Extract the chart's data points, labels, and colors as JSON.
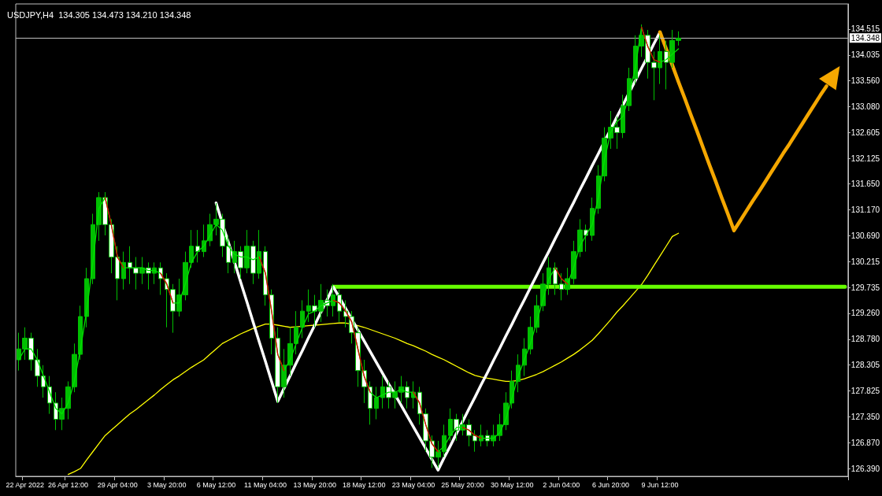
{
  "chart_data": {
    "type": "candlestick",
    "title": "USDJPY,H4  134.305 134.473 134.210 134.348",
    "categories": [
      null,
      "22 Apr 2022",
      null,
      null,
      null,
      null,
      null,
      null,
      "26 Apr 12:00",
      null,
      null,
      null,
      null,
      null,
      null,
      null,
      "29 Apr 04:00",
      null,
      null,
      null,
      null,
      null,
      null,
      null,
      "3 May 20:00",
      null,
      null,
      null,
      null,
      null,
      null,
      null,
      "6 May 12:00",
      null,
      null,
      null,
      null,
      null,
      null,
      null,
      "11 May 04:00",
      null,
      null,
      null,
      null,
      null,
      null,
      null,
      "13 May 20:00",
      null,
      null,
      null,
      null,
      null,
      null,
      null,
      "18 May 12:00",
      null,
      null,
      null,
      null,
      null,
      null,
      null,
      "23 May 04:00",
      null,
      null,
      null,
      null,
      null,
      null,
      null,
      "25 May 20:00",
      null,
      null,
      null,
      null,
      null,
      null,
      null,
      "30 May 12:00",
      null,
      null,
      null,
      null,
      null,
      null,
      null,
      "2 Jun 04:00",
      null,
      null,
      null,
      null,
      null,
      null,
      null,
      "6 Jun 20:00",
      null,
      null,
      null,
      null,
      null,
      null,
      null,
      "9 Jun 12:00",
      null,
      null,
      null,
      null,
      null,
      null,
      null,
      null,
      null,
      null,
      null,
      null,
      null,
      null,
      null,
      null,
      null,
      null,
      null,
      null,
      null,
      null,
      null,
      null,
      null,
      null,
      null,
      null,
      null,
      null
    ],
    "color": "#00c000",
    "ohlc": [
      [
        128.4,
        128.9,
        128.2,
        128.6
      ],
      [
        128.6,
        129.0,
        128.4,
        128.8
      ],
      [
        128.8,
        128.9,
        128.2,
        128.4
      ],
      [
        128.4,
        128.6,
        127.9,
        128.1
      ],
      [
        128.1,
        128.3,
        127.7,
        127.9
      ],
      [
        127.9,
        128.1,
        127.4,
        127.6
      ],
      [
        127.6,
        127.8,
        127.1,
        127.3
      ],
      [
        127.3,
        127.7,
        127.1,
        127.5
      ],
      [
        127.5,
        128.0,
        127.3,
        127.9
      ],
      [
        127.9,
        128.7,
        127.8,
        128.5
      ],
      [
        128.5,
        129.4,
        128.4,
        129.2
      ],
      [
        129.2,
        130.1,
        129.0,
        129.9
      ],
      [
        129.9,
        131.1,
        129.8,
        130.9
      ],
      [
        130.9,
        131.5,
        130.6,
        131.4
      ],
      [
        131.4,
        131.5,
        130.7,
        130.9
      ],
      [
        130.9,
        131.0,
        130.0,
        130.3
      ],
      [
        130.3,
        130.5,
        129.5,
        129.9
      ],
      [
        129.9,
        130.4,
        129.7,
        130.2
      ],
      [
        130.2,
        130.5,
        129.8,
        130.1
      ],
      [
        130.1,
        130.3,
        129.7,
        130.0
      ],
      [
        130.0,
        130.3,
        129.8,
        130.1
      ],
      [
        130.1,
        130.2,
        129.7,
        130.0
      ],
      [
        130.0,
        130.2,
        129.8,
        130.1
      ],
      [
        130.1,
        130.2,
        129.6,
        129.9
      ],
      [
        129.9,
        130.0,
        129.0,
        129.7
      ],
      [
        129.7,
        129.8,
        128.9,
        129.3
      ],
      [
        129.3,
        129.9,
        129.2,
        129.6
      ],
      [
        129.6,
        130.4,
        129.5,
        130.2
      ],
      [
        130.2,
        130.8,
        130.1,
        130.5
      ],
      [
        130.5,
        130.8,
        130.2,
        130.4
      ],
      [
        130.4,
        130.9,
        130.3,
        130.6
      ],
      [
        130.6,
        131.1,
        130.5,
        130.9
      ],
      [
        130.9,
        131.3,
        130.7,
        131.0
      ],
      [
        131.0,
        131.1,
        130.3,
        130.5
      ],
      [
        130.5,
        130.7,
        130.0,
        130.2
      ],
      [
        130.2,
        130.6,
        130.0,
        130.4
      ],
      [
        130.4,
        130.5,
        129.9,
        130.1
      ],
      [
        130.1,
        130.8,
        130.0,
        130.5
      ],
      [
        130.5,
        130.6,
        129.8,
        130.0
      ],
      [
        130.0,
        130.8,
        129.9,
        130.4
      ],
      [
        130.4,
        130.5,
        129.4,
        129.6
      ],
      [
        129.6,
        129.7,
        128.5,
        128.8
      ],
      [
        128.8,
        129.0,
        127.6,
        127.9
      ],
      [
        127.9,
        128.6,
        127.7,
        128.3
      ],
      [
        128.3,
        129.0,
        128.1,
        128.7
      ],
      [
        128.7,
        129.3,
        128.5,
        129.0
      ],
      [
        129.0,
        129.5,
        128.8,
        129.3
      ],
      [
        129.3,
        129.7,
        129.1,
        129.4
      ],
      [
        129.4,
        129.6,
        129.0,
        129.3
      ],
      [
        129.3,
        129.8,
        129.1,
        129.5
      ],
      [
        129.5,
        129.7,
        129.2,
        129.4
      ],
      [
        129.4,
        129.8,
        129.2,
        129.6
      ],
      [
        129.6,
        129.7,
        129.1,
        129.3
      ],
      [
        129.3,
        129.5,
        129.0,
        129.2
      ],
      [
        129.2,
        129.3,
        128.7,
        128.9
      ],
      [
        128.9,
        129.0,
        127.9,
        128.2
      ],
      [
        128.2,
        128.4,
        127.6,
        127.9
      ],
      [
        127.9,
        128.0,
        127.2,
        127.5
      ],
      [
        127.5,
        127.9,
        127.3,
        127.7
      ],
      [
        127.7,
        128.1,
        127.5,
        127.9
      ],
      [
        127.9,
        128.0,
        127.5,
        127.7
      ],
      [
        127.7,
        128.0,
        127.5,
        127.8
      ],
      [
        127.8,
        128.1,
        127.6,
        127.9
      ],
      [
        127.9,
        128.0,
        127.5,
        127.7
      ],
      [
        127.7,
        128.0,
        127.5,
        127.8
      ],
      [
        127.8,
        127.9,
        127.2,
        127.4
      ],
      [
        127.4,
        127.5,
        126.7,
        126.9
      ],
      [
        126.9,
        127.0,
        126.4,
        126.6
      ],
      [
        126.6,
        126.9,
        126.4,
        126.7
      ],
      [
        126.7,
        127.2,
        126.6,
        127.0
      ],
      [
        127.0,
        127.5,
        126.9,
        127.3
      ],
      [
        127.3,
        127.4,
        126.9,
        127.1
      ],
      [
        127.1,
        127.4,
        127.0,
        127.2
      ],
      [
        127.2,
        127.3,
        126.8,
        127.0
      ],
      [
        127.0,
        127.1,
        126.7,
        126.9
      ],
      [
        126.9,
        127.2,
        126.8,
        127.0
      ],
      [
        127.0,
        127.1,
        126.8,
        126.9
      ],
      [
        126.9,
        127.2,
        126.8,
        127.0
      ],
      [
        127.0,
        127.4,
        126.9,
        127.2
      ],
      [
        127.2,
        127.8,
        127.1,
        127.6
      ],
      [
        127.6,
        128.2,
        127.5,
        128.0
      ],
      [
        128.0,
        128.5,
        127.8,
        128.3
      ],
      [
        128.3,
        128.8,
        128.1,
        128.6
      ],
      [
        128.6,
        129.2,
        128.5,
        129.0
      ],
      [
        129.0,
        129.6,
        128.9,
        129.4
      ],
      [
        129.4,
        130.0,
        129.3,
        129.8
      ],
      [
        129.8,
        130.3,
        129.6,
        130.1
      ],
      [
        130.1,
        130.2,
        129.6,
        129.8
      ],
      [
        129.8,
        130.0,
        129.5,
        129.7
      ],
      [
        129.7,
        130.1,
        129.6,
        129.9
      ],
      [
        129.9,
        130.6,
        129.8,
        130.4
      ],
      [
        130.4,
        131.0,
        130.3,
        130.8
      ],
      [
        130.8,
        130.9,
        130.4,
        130.7
      ],
      [
        130.7,
        131.4,
        130.6,
        131.2
      ],
      [
        131.2,
        132.0,
        131.1,
        131.8
      ],
      [
        131.8,
        132.7,
        131.7,
        132.5
      ],
      [
        132.5,
        133.0,
        132.3,
        132.7
      ],
      [
        132.7,
        132.9,
        132.3,
        132.6
      ],
      [
        132.6,
        133.3,
        132.5,
        133.1
      ],
      [
        133.1,
        133.8,
        133.0,
        133.6
      ],
      [
        133.6,
        134.4,
        133.5,
        134.2
      ],
      [
        134.2,
        134.6,
        134.0,
        134.4
      ],
      [
        134.4,
        134.5,
        133.6,
        133.9
      ],
      [
        133.9,
        134.1,
        133.2,
        133.8
      ],
      [
        133.8,
        134.4,
        133.5,
        134.1
      ],
      [
        134.1,
        134.3,
        133.4,
        133.9
      ],
      [
        133.9,
        134.5,
        133.8,
        134.305
      ],
      [
        134.305,
        134.473,
        134.21,
        134.348
      ],
      null,
      null,
      null,
      null,
      null,
      null,
      null,
      null,
      null,
      null,
      null,
      null,
      null,
      null,
      null,
      null,
      null,
      null,
      null,
      null,
      null,
      null,
      null,
      null,
      null,
      null,
      null
    ],
    "series": [
      {
        "type": "line",
        "color": "#ffff00",
        "values": [
          null,
          null,
          null,
          null,
          null,
          null,
          null,
          null,
          126.28,
          126.33,
          126.39,
          126.55,
          126.7,
          126.85,
          127.0,
          127.1,
          127.2,
          127.3,
          127.4,
          127.48,
          127.57,
          127.66,
          127.75,
          127.85,
          127.94,
          128.03,
          128.1,
          128.18,
          128.26,
          128.33,
          128.4,
          128.5,
          128.6,
          128.7,
          128.76,
          128.82,
          128.88,
          128.93,
          128.98,
          129.02,
          129.06,
          129.06,
          129.04,
          129.02,
          129.0,
          129.01,
          129.02,
          129.03,
          129.04,
          129.05,
          129.06,
          129.07,
          129.08,
          129.08,
          129.06,
          129.03,
          129.0,
          128.96,
          128.92,
          128.88,
          128.84,
          128.8,
          128.75,
          128.7,
          128.66,
          128.61,
          128.56,
          128.5,
          128.45,
          128.4,
          128.34,
          128.28,
          128.22,
          128.16,
          128.11,
          128.08,
          128.06,
          128.04,
          128.02,
          128.0,
          128.0,
          128.02,
          128.05,
          128.09,
          128.13,
          128.18,
          128.24,
          128.3,
          128.36,
          128.43,
          128.5,
          128.58,
          128.67,
          128.76,
          128.88,
          129.01,
          129.14,
          129.28,
          129.4,
          129.53,
          129.66,
          129.79,
          129.96,
          130.14,
          130.32,
          130.5,
          130.68,
          130.74,
          null,
          null,
          null,
          null,
          null,
          null,
          null,
          null,
          null,
          null,
          null,
          null,
          null,
          null,
          null,
          null,
          null,
          null,
          null,
          null,
          null,
          null,
          null,
          null,
          null,
          null,
          null
        ]
      },
      {
        "type": "line",
        "color": "#00e000",
        "values": [
          128.4,
          128.6,
          128.6,
          128.4,
          128.1,
          127.8,
          127.5,
          127.4,
          127.6,
          128.0,
          128.6,
          129.3,
          130.2,
          131.2,
          131.4,
          130.9,
          130.3,
          130.1,
          130.1,
          130.1,
          130.1,
          130.05,
          130.05,
          130.0,
          129.8,
          129.45,
          129.45,
          129.8,
          130.2,
          130.4,
          130.5,
          130.7,
          130.9,
          130.8,
          130.5,
          130.35,
          130.3,
          130.3,
          130.25,
          130.3,
          130.0,
          129.3,
          128.5,
          128.2,
          128.4,
          128.7,
          129.0,
          129.25,
          129.3,
          129.4,
          129.45,
          129.5,
          129.45,
          129.3,
          129.1,
          128.6,
          128.1,
          127.8,
          127.7,
          127.75,
          127.8,
          127.8,
          127.85,
          127.8,
          127.8,
          127.6,
          127.2,
          126.85,
          126.7,
          126.8,
          127.0,
          127.15,
          127.15,
          127.1,
          127.0,
          126.95,
          126.95,
          126.95,
          127.05,
          127.3,
          127.7,
          128.1,
          128.4,
          128.7,
          129.1,
          129.5,
          129.9,
          130.1,
          129.9,
          129.8,
          130.1,
          130.5,
          130.7,
          130.9,
          131.4,
          132.1,
          132.6,
          132.8,
          132.9,
          133.3,
          133.8,
          134.55,
          134.2,
          133.95,
          133.9,
          133.95,
          134.05,
          134.15,
          null,
          null,
          null,
          null,
          null,
          null,
          null,
          null,
          null,
          null,
          null,
          null,
          null,
          null,
          null,
          null,
          null,
          null,
          null,
          null,
          null,
          null,
          null,
          null,
          null,
          null,
          null
        ]
      },
      {
        "type": "line",
        "color": "#e00000",
        "values": [
          null,
          null,
          null,
          null,
          null,
          null,
          null,
          null,
          null,
          null,
          null,
          null,
          null,
          null,
          131.4,
          130.9,
          130.3,
          130.1,
          null,
          null,
          null,
          null,
          null,
          130.0,
          129.8,
          129.45,
          null,
          null,
          null,
          null,
          null,
          null,
          null,
          null,
          null,
          null,
          null,
          null,
          null,
          130.3,
          130.0,
          129.3,
          128.5,
          128.2,
          null,
          null,
          null,
          null,
          null,
          null,
          null,
          129.5,
          129.45,
          129.3,
          129.1,
          128.6,
          128.1,
          127.8,
          null,
          null,
          null,
          null,
          null,
          null,
          127.8,
          127.6,
          127.2,
          126.85,
          126.7,
          null,
          null,
          null,
          127.15,
          127.1,
          127.0,
          126.95,
          null,
          null,
          null,
          null,
          null,
          null,
          null,
          null,
          null,
          null,
          null,
          130.1,
          129.9,
          129.8,
          null,
          null,
          null,
          null,
          null,
          null,
          null,
          null,
          null,
          null,
          null,
          134.55,
          134.2,
          133.95,
          133.9,
          null,
          null,
          null,
          null,
          null,
          null,
          null,
          null,
          null,
          null,
          null,
          null,
          null,
          null,
          null,
          null,
          null,
          null,
          null,
          null,
          null,
          null,
          null,
          null,
          null,
          null,
          null,
          null,
          null,
          null
        ]
      },
      {
        "type": "line",
        "color": "#66ff00",
        "values": [
          null,
          null,
          null,
          null,
          null,
          null,
          null,
          null,
          null,
          null,
          null,
          null,
          null,
          null,
          null,
          null,
          null,
          null,
          null,
          null,
          null,
          null,
          null,
          null,
          null,
          null,
          null,
          null,
          null,
          null,
          null,
          null,
          null,
          null,
          null,
          null,
          null,
          null,
          null,
          null,
          null,
          null,
          null,
          null,
          null,
          null,
          null,
          null,
          null,
          null,
          null,
          129.75,
          129.75,
          129.75,
          129.75,
          129.75,
          129.75,
          129.75,
          129.75,
          129.75,
          129.75,
          129.75,
          129.75,
          129.75,
          129.75,
          129.75,
          129.75,
          129.75,
          129.75,
          129.75,
          129.75,
          129.75,
          129.75,
          129.75,
          129.75,
          129.75,
          129.75,
          129.75,
          129.75,
          129.75,
          129.75,
          129.75,
          129.75,
          129.75,
          129.75,
          129.75,
          129.75,
          129.75,
          129.75,
          129.75,
          129.75,
          129.75,
          129.75,
          129.75,
          129.75,
          129.75,
          129.75,
          129.75,
          129.75,
          129.75,
          129.75,
          129.75,
          129.75,
          129.75,
          129.75,
          129.75,
          129.75,
          129.75,
          129.75,
          129.75,
          129.75,
          129.75,
          129.75,
          129.75,
          129.75,
          129.75,
          129.75,
          129.75,
          129.75,
          129.75,
          129.75,
          129.75,
          129.75,
          129.75,
          129.75,
          129.75,
          129.75,
          129.75,
          129.75,
          129.75,
          129.75,
          129.75,
          129.75,
          129.75,
          129.75
        ]
      },
      {
        "type": "line",
        "color": "#ffffff",
        "values": [
          null,
          null,
          null,
          null,
          null,
          null,
          null,
          null,
          null,
          null,
          null,
          null,
          null,
          null,
          null,
          null,
          null,
          null,
          null,
          null,
          null,
          null,
          null,
          null,
          null,
          null,
          null,
          null,
          null,
          null,
          null,
          null,
          131.3,
          130.93,
          130.57,
          130.2,
          129.83,
          129.47,
          129.1,
          128.73,
          128.37,
          128.0,
          127.63,
          127.87,
          128.1,
          128.34,
          128.57,
          128.81,
          129.04,
          129.28,
          129.51,
          129.75,
          129.55,
          129.35,
          129.15,
          128.95,
          128.75,
          128.55,
          128.35,
          128.15,
          127.95,
          127.76,
          127.56,
          127.36,
          127.16,
          126.96,
          126.76,
          126.56,
          126.36,
          126.59,
          126.81,
          127.04,
          127.26,
          127.49,
          127.71,
          127.94,
          128.16,
          128.39,
          128.61,
          128.84,
          129.06,
          129.29,
          129.51,
          129.74,
          129.96,
          130.19,
          130.41,
          130.64,
          130.86,
          131.09,
          131.31,
          131.54,
          131.76,
          131.99,
          132.21,
          132.44,
          132.66,
          132.89,
          133.11,
          133.34,
          133.56,
          133.79,
          134.01,
          134.24,
          134.46,
          null,
          null,
          null,
          null,
          null,
          null,
          null,
          null,
          null,
          null,
          null,
          null,
          null,
          null,
          null,
          null,
          null,
          null,
          null,
          null,
          null,
          null,
          null,
          null,
          null,
          null,
          null,
          null,
          null,
          null
        ]
      },
      {
        "type": "line",
        "color": "#f5a700",
        "values": [
          null,
          null,
          null,
          null,
          null,
          null,
          null,
          null,
          null,
          null,
          null,
          null,
          null,
          null,
          null,
          null,
          null,
          null,
          null,
          null,
          null,
          null,
          null,
          null,
          null,
          null,
          null,
          null,
          null,
          null,
          null,
          null,
          null,
          null,
          null,
          null,
          null,
          null,
          null,
          null,
          null,
          null,
          null,
          null,
          null,
          null,
          null,
          null,
          null,
          null,
          null,
          null,
          null,
          null,
          null,
          null,
          null,
          null,
          null,
          null,
          null,
          null,
          null,
          null,
          null,
          null,
          null,
          null,
          null,
          null,
          null,
          null,
          null,
          null,
          null,
          null,
          null,
          null,
          null,
          null,
          null,
          null,
          null,
          null,
          null,
          null,
          null,
          null,
          null,
          null,
          null,
          null,
          null,
          null,
          null,
          null,
          null,
          null,
          null,
          null,
          null,
          null,
          null,
          null,
          134.46,
          134.15,
          133.85,
          133.54,
          133.24,
          132.93,
          132.63,
          132.32,
          132.01,
          131.71,
          131.4,
          131.1,
          130.79,
          130.97,
          131.15,
          131.33,
          131.5,
          131.68,
          131.86,
          132.04,
          132.22,
          132.39,
          132.57,
          132.75,
          132.93,
          133.11,
          133.29,
          133.46,
          null,
          null,
          null
        ]
      }
    ],
    "ylim": [
      126.245,
      134.98
    ],
    "yticks": [
      {
        "value": 126.39,
        "label": "126.390"
      },
      {
        "value": 126.87,
        "label": "126.870"
      },
      {
        "value": 127.35,
        "label": "127.350"
      },
      127.825,
      128.305,
      {
        "value": 128.78,
        "label": "128.780"
      },
      {
        "value": 129.26,
        "label": "129.260"
      },
      129.735,
      130.215,
      {
        "value": 130.69,
        "label": "130.690"
      },
      {
        "value": 131.17,
        "label": "131.170"
      },
      {
        "value": 131.65,
        "label": "131.650"
      },
      132.125,
      132.605,
      {
        "value": 133.08,
        "label": "133.080"
      },
      {
        "value": 133.56,
        "label": "133.560"
      },
      134.035,
      134.515
    ],
    "ref_lines": [
      {
        "axis": "y",
        "value": 134.348,
        "label": "134.348",
        "color": "#c0c0c0"
      }
    ],
    "marker": "none",
    "grid": false
  }
}
